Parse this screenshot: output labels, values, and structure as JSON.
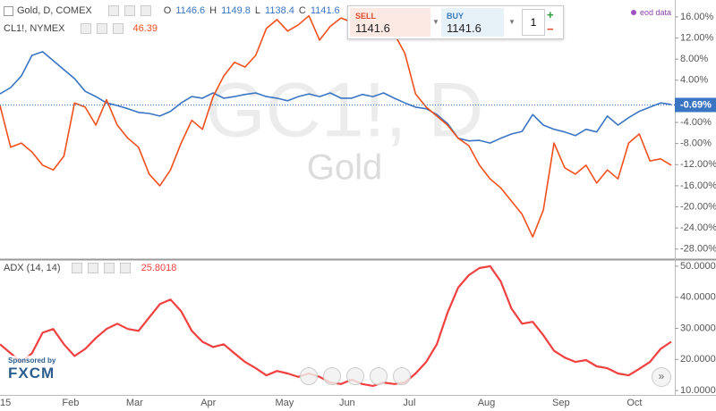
{
  "header": {
    "ohlc": [
      {
        "label": "O",
        "value": 1146.6
      },
      {
        "label": "H",
        "value": 1149.8
      },
      {
        "label": "L",
        "value": 1138.4
      },
      {
        "label": "C",
        "value": 1141.6
      }
    ],
    "data_note": "eod data"
  },
  "trade": {
    "sell_label": "SELL",
    "sell_price": 1141.6,
    "buy_label": "BUY",
    "buy_price": 1141.6,
    "quantity": 1,
    "plus": "+",
    "minus": "−"
  },
  "watermark": {
    "symbol": "GC1!, D",
    "name": "Gold"
  },
  "sponsor": {
    "text": "Sponsored by",
    "brand": "FXCM"
  },
  "chart_data": [
    {
      "type": "line",
      "series": [
        {
          "name": "Gold, D, COMEX",
          "color": "#3a75c4",
          "values": [
            1.4,
            2.6,
            4.8,
            8.7,
            9.4,
            7.7,
            6.0,
            4.3,
            1.9,
            0.9,
            -0.3,
            -0.8,
            -1.4,
            -2.1,
            -2.3,
            -2.8,
            -1.9,
            -0.3,
            0.9,
            0.6,
            1.6,
            0.6,
            0.9,
            1.3,
            1.6,
            0.9,
            0.6,
            0.1,
            0.9,
            1.4,
            0.9,
            1.6,
            0.6,
            0.6,
            1.3,
            0.9,
            1.6,
            0.6,
            -0.3,
            -1.1,
            -1.4,
            -2.5,
            -4.2,
            -7.0,
            -7.5,
            -7.4,
            -7.9,
            -7.0,
            -6.2,
            -5.7,
            -2.5,
            -4.5,
            -5.3,
            -5.8,
            -6.5,
            -5.3,
            -5.8,
            -2.8,
            -4.5,
            -3.1,
            -1.9,
            -1.1,
            -0.3,
            -0.6
          ]
        },
        {
          "name": "CL1!, NYMEX",
          "color": "#f1501c",
          "last": 46.39,
          "values": [
            -0.8,
            -8.7,
            -7.9,
            -9.6,
            -12.1,
            -13.0,
            -10.4,
            -0.3,
            -1.1,
            -4.5,
            0.3,
            -4.5,
            -7.0,
            -8.7,
            -13.8,
            -16.0,
            -13.0,
            -7.9,
            -3.6,
            -5.3,
            0.9,
            4.8,
            7.4,
            6.5,
            8.7,
            13.8,
            15.5,
            13.3,
            14.5,
            16.2,
            11.6,
            14.2,
            15.8,
            15.0,
            16.5,
            14.2,
            15.8,
            12.8,
            9.1,
            1.4,
            -1.1,
            -2.8,
            -4.5,
            -7.0,
            -8.4,
            -12.1,
            -14.7,
            -16.4,
            -18.9,
            -21.4,
            -25.7,
            -20.6,
            -7.9,
            -12.6,
            -13.8,
            -12.1,
            -15.5,
            -13.0,
            -14.7,
            -7.9,
            -6.2,
            -11.3,
            -10.9,
            -12.1
          ]
        }
      ],
      "ylim": [
        -29.9,
        19.2
      ],
      "yticks": [
        {
          "value": 16,
          "label": "16.00%"
        },
        {
          "value": 12,
          "label": "12.00%"
        },
        {
          "value": 8,
          "label": "8.00%"
        },
        {
          "value": 4,
          "label": "4.00%"
        },
        {
          "value": -4,
          "label": "-4.00%"
        },
        {
          "value": -8,
          "label": "-8.00%"
        },
        {
          "value": -12,
          "label": "-12.00%"
        },
        {
          "value": -16,
          "label": "-16.00%"
        },
        {
          "value": -20,
          "label": "-20.00%"
        },
        {
          "value": -24,
          "label": "-24.00%"
        },
        {
          "value": -28,
          "label": "-28.00%"
        }
      ],
      "last_value": {
        "value": -0.69,
        "label": "-0.69%"
      }
    },
    {
      "type": "line",
      "categories": [
        "15",
        null,
        null,
        null,
        null,
        null,
        "Feb",
        null,
        null,
        null,
        null,
        null,
        "Mar",
        null,
        null,
        null,
        null,
        null,
        null,
        "Apr",
        null,
        null,
        null,
        null,
        null,
        null,
        "May",
        null,
        null,
        null,
        null,
        null,
        "Jun",
        null,
        null,
        null,
        null,
        null,
        "Jul",
        null,
        null,
        null,
        null,
        null,
        null,
        "Aug",
        null,
        null,
        null,
        null,
        null,
        null,
        "Sep",
        null,
        null,
        null,
        null,
        null,
        null,
        "Oct",
        null,
        null,
        null,
        null
      ],
      "series": [
        {
          "name": "ADX (14, 14)",
          "color": "#f04040",
          "last": 25.8018,
          "values": [
            24.9,
            22.0,
            19.2,
            22.0,
            28.6,
            29.8,
            24.9,
            21.1,
            23.4,
            26.9,
            29.8,
            31.5,
            29.8,
            29.2,
            33.5,
            37.8,
            39.3,
            35.5,
            29.2,
            25.7,
            24.0,
            24.9,
            22.0,
            19.2,
            17.2,
            14.9,
            16.3,
            15.5,
            14.4,
            15.5,
            14.4,
            12.6,
            12.1,
            13.5,
            12.1,
            11.5,
            12.6,
            12.1,
            12.6,
            15.5,
            19.2,
            24.9,
            35.0,
            43.1,
            47.1,
            49.4,
            50.0,
            45.1,
            36.4,
            31.5,
            32.1,
            27.8,
            22.8,
            20.6,
            19.2,
            19.8,
            17.8,
            17.2,
            15.5,
            14.9,
            17.0,
            19.2,
            23.4,
            25.7
          ]
        }
      ],
      "ylim": [
        8.6,
        51.7
      ],
      "yticks": [
        {
          "value": 50,
          "label": "50.0000"
        },
        {
          "value": 40,
          "label": "40.0000"
        },
        {
          "value": 30,
          "label": "30.0000"
        },
        {
          "value": 20,
          "label": "20.0000"
        },
        {
          "value": 10,
          "label": "10.0000"
        }
      ]
    }
  ]
}
